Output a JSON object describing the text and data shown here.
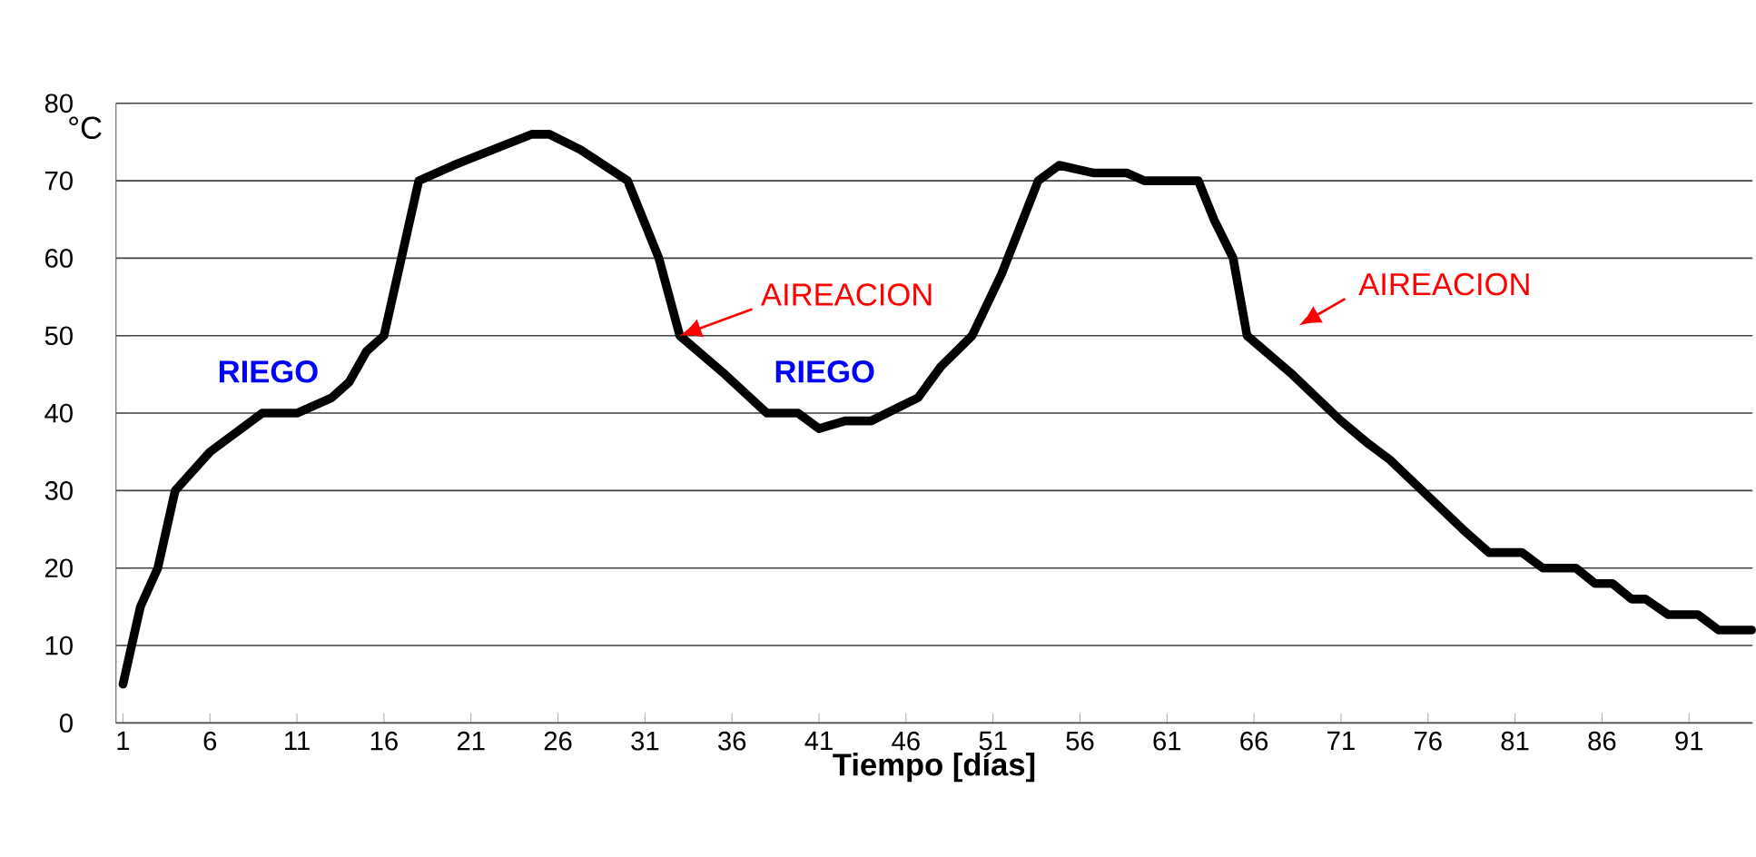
{
  "chart_data": {
    "type": "line",
    "xlabel": "Tiempo [días]",
    "ylabel": "°C",
    "xlim": [
      0.6,
      94.65
    ],
    "ylim": [
      0,
      80
    ],
    "xticks": [
      1,
      6,
      11,
      16,
      21,
      26,
      31,
      36,
      41,
      46,
      51,
      56,
      61,
      66,
      71,
      76,
      81,
      86,
      91
    ],
    "yticks": [
      0,
      10,
      20,
      30,
      40,
      50,
      60,
      70,
      80
    ],
    "grid": "y",
    "marker": "none",
    "line_style": "solid",
    "series": [
      {
        "color": "#000000",
        "x": [
          1,
          2,
          3,
          4,
          6,
          9,
          11,
          13,
          14,
          15,
          16,
          18,
          20,
          24.5,
          25.5,
          27.3,
          30,
          31.8,
          33,
          35.6,
          38,
          39.8,
          41,
          42.5,
          44,
          46.7,
          48,
          49.8,
          51.5,
          53.6,
          54.8,
          56.8,
          58.7,
          59.7,
          62.8,
          63.7,
          64.8,
          65.6,
          68.2,
          69.6,
          71,
          72.6,
          73.8,
          75.2,
          76.6,
          78,
          79.5,
          81.4,
          82.6,
          84.5,
          85.6,
          86.6,
          87.7,
          88.5,
          89.8,
          91.5,
          92.7,
          94.6
        ],
        "values": [
          5,
          15,
          20,
          30,
          35,
          40,
          40,
          42,
          44,
          48,
          50,
          70,
          72,
          76,
          76,
          74,
          70,
          60,
          50,
          45,
          40,
          40,
          38,
          39,
          39,
          42,
          46,
          50,
          58,
          70,
          72,
          71,
          71,
          70,
          70,
          65,
          60,
          50,
          45,
          42,
          39,
          36,
          34,
          31,
          28,
          25,
          22,
          22,
          20,
          20,
          18,
          18,
          16,
          16,
          14,
          14,
          12,
          12
        ]
      }
    ],
    "annotations": [
      "RIEGO",
      {
        "text": "AIREACION",
        "x": 33,
        "y": 50
      },
      "RIEGO",
      "AIREACION"
    ]
  }
}
